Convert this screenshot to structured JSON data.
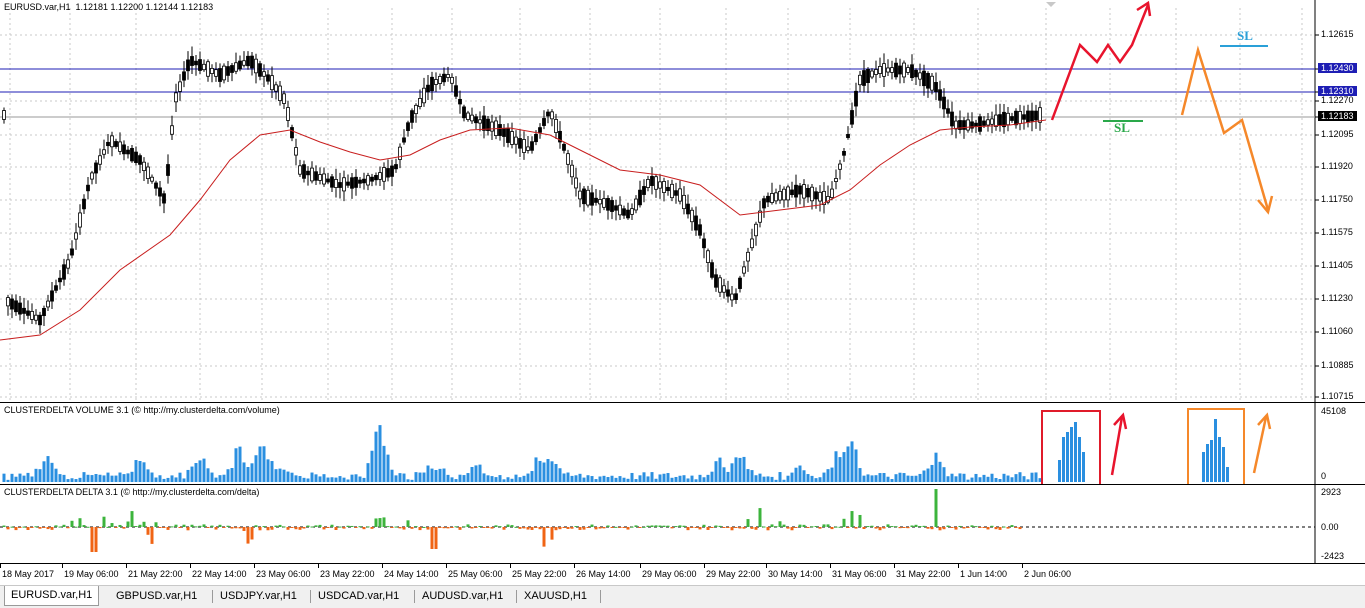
{
  "main_pane": {
    "title": "EURUSD.var,H1  1.12181 1.12200 1.12144 1.12183",
    "price_labels": [
      "1.12615",
      "1.12430",
      "1.12310",
      "1.12270",
      "1.12183",
      "1.12095",
      "1.11920",
      "1.11750",
      "1.11575",
      "1.11405",
      "1.11230",
      "1.11060",
      "1.10885",
      "1.10715"
    ],
    "hline_labels": {
      "upper": "1.12430",
      "lower": "1.12310",
      "current": "1.12183"
    },
    "sl_upper": "SL",
    "sl_lower": "SL"
  },
  "volume_pane": {
    "title": "CLUSTERDELTA VOLUME 3.1 (© http://my.clusterdelta.com/volume)",
    "max_label": "45108",
    "min_label": "0"
  },
  "delta_pane": {
    "title": "CLUSTERDELTA DELTA 3.1 (© http://my.clusterdelta.com/delta)",
    "labels": [
      "2923",
      "0.00",
      "-2423"
    ]
  },
  "time_axis": [
    "18 May 2017",
    "19 May 06:00",
    "21 May 22:00",
    "22 May 14:00",
    "23 May 06:00",
    "23 May 22:00",
    "24 May 14:00",
    "25 May 06:00",
    "25 May 22:00",
    "26 May 14:00",
    "29 May 06:00",
    "29 May 22:00",
    "30 May 14:00",
    "31 May 06:00",
    "31 May 22:00",
    "1 Jun 14:00",
    "2 Jun 06:00"
  ],
  "tabs": [
    "EURUSD.var,H1",
    "GBPUSD.var,H1",
    "USDJPY.var,H1",
    "USDCAD.var,H1",
    "AUDUSD.var,H1",
    "XAUUSD,H1"
  ],
  "colors": {
    "bull": "#000000",
    "bear": "#000000",
    "ma": "#c81e1e",
    "hline": "#1e1eb4",
    "current_bg": "#000000",
    "hline_bg": "#1e1eb4",
    "volume": "#2a8fe0",
    "delta_pos": "#3cb43c",
    "delta_neg": "#f06414",
    "red_arrow": "#e8142d",
    "orange_arrow": "#f5882a",
    "sl_blue": "#2aa0d8",
    "sl_green": "#2aa84a"
  }
}
